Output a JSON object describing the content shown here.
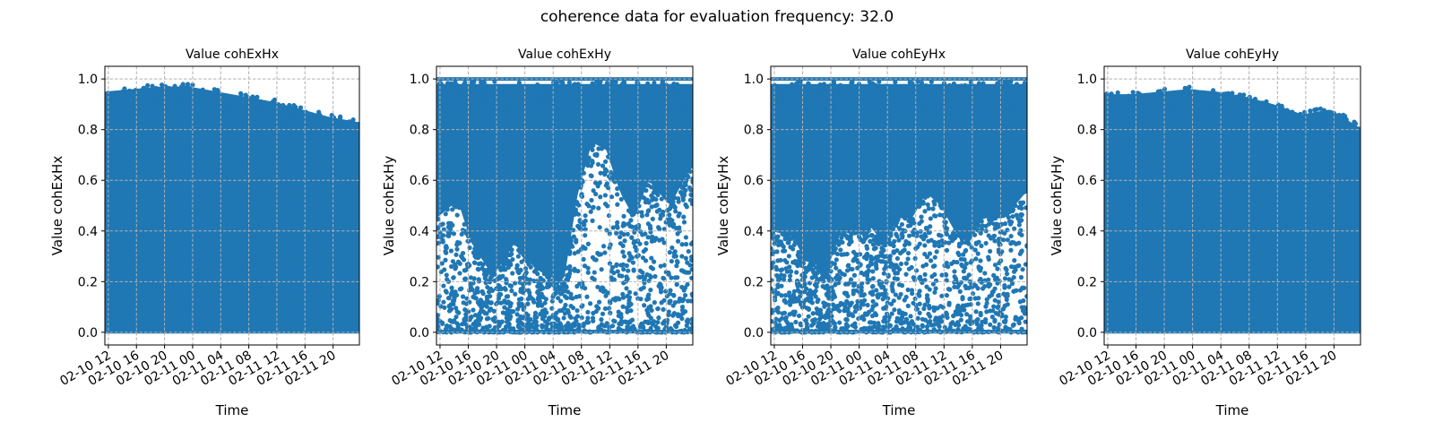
{
  "figure": {
    "suptitle": "coherence data for evaluation frequency: 32.0"
  },
  "style": {
    "point_color": "#1f77b4",
    "grid_color": "#b0b0b0",
    "axis_color": "#000000",
    "background": "#ffffff"
  },
  "chart_data": [
    {
      "type": "scatter",
      "title": "Value cohExHx",
      "xlabel": "Time",
      "ylabel": "Value cohExHx",
      "x_range": [
        "02-10 11:30",
        "02-11 23:45"
      ],
      "ylim": [
        -0.05,
        1.05
      ],
      "x_tick_labels": [
        "02-10 12",
        "02-10 16",
        "02-10 20",
        "02-11 00",
        "02-11 04",
        "02-11 08",
        "02-11 12",
        "02-11 16",
        "02-11 20"
      ],
      "y_tick_labels": [
        "0.0",
        "0.2",
        "0.4",
        "0.6",
        "0.8",
        "1.0"
      ],
      "grid": true,
      "series": [
        {
          "points_description": "dense band filling 0.0 to upper envelope",
          "upper_envelope": [
            [
              0,
              0.97
            ],
            [
              4,
              0.98
            ],
            [
              8,
              0.99
            ],
            [
              12,
              0.99
            ],
            [
              16,
              0.97
            ],
            [
              20,
              0.95
            ],
            [
              24,
              0.93
            ],
            [
              28,
              0.9
            ],
            [
              32,
              0.87
            ],
            [
              36,
              0.85
            ]
          ],
          "sparse_region": []
        }
      ]
    },
    {
      "type": "scatter",
      "title": "Value cohExHy",
      "xlabel": "Time",
      "ylabel": "Value cohExHy",
      "x_range": [
        "02-10 11:30",
        "02-11 23:45"
      ],
      "ylim": [
        -0.05,
        1.05
      ],
      "x_tick_labels": [
        "02-10 12",
        "02-10 16",
        "02-10 20",
        "02-11 00",
        "02-11 04",
        "02-11 08",
        "02-11 12",
        "02-11 16",
        "02-11 20"
      ],
      "y_tick_labels": [
        "0.0",
        "0.2",
        "0.4",
        "0.6",
        "0.8",
        "1.0"
      ],
      "grid": true,
      "series": [
        {
          "upper_envelope": [
            [
              0,
              1.0
            ],
            [
              36,
              1.0
            ]
          ],
          "dense_floor": [
            [
              0,
              0.45
            ],
            [
              3,
              0.52
            ],
            [
              5,
              0.35
            ],
            [
              8,
              0.22
            ],
            [
              11,
              0.35
            ],
            [
              14,
              0.25
            ],
            [
              16,
              0.22
            ],
            [
              18,
              0.2
            ],
            [
              20,
              0.55
            ],
            [
              22,
              0.75
            ],
            [
              24,
              0.72
            ],
            [
              26,
              0.55
            ],
            [
              28,
              0.45
            ],
            [
              30,
              0.6
            ],
            [
              33,
              0.5
            ],
            [
              36,
              0.65
            ]
          ]
        }
      ]
    },
    {
      "type": "scatter",
      "title": "Value cohEyHx",
      "xlabel": "Time",
      "ylabel": "Value cohEyHx",
      "x_range": [
        "02-10 11:30",
        "02-11 23:45"
      ],
      "ylim": [
        -0.05,
        1.05
      ],
      "x_tick_labels": [
        "02-10 12",
        "02-10 16",
        "02-10 20",
        "02-11 00",
        "02-11 04",
        "02-11 08",
        "02-11 12",
        "02-11 16",
        "02-11 20"
      ],
      "y_tick_labels": [
        "0.0",
        "0.2",
        "0.4",
        "0.6",
        "0.8",
        "1.0"
      ],
      "grid": true,
      "series": [
        {
          "upper_envelope": [
            [
              0,
              1.0
            ],
            [
              36,
              1.0
            ]
          ],
          "dense_floor": [
            [
              0,
              0.4
            ],
            [
              3,
              0.38
            ],
            [
              5,
              0.28
            ],
            [
              8,
              0.25
            ],
            [
              10,
              0.4
            ],
            [
              12,
              0.38
            ],
            [
              14,
              0.42
            ],
            [
              16,
              0.35
            ],
            [
              18,
              0.45
            ],
            [
              20,
              0.45
            ],
            [
              22,
              0.55
            ],
            [
              24,
              0.5
            ],
            [
              26,
              0.4
            ],
            [
              28,
              0.35
            ],
            [
              30,
              0.45
            ],
            [
              33,
              0.45
            ],
            [
              36,
              0.55
            ]
          ]
        }
      ]
    },
    {
      "type": "scatter",
      "title": "Value cohEyHy",
      "xlabel": "Time",
      "ylabel": "Value cohEyHy",
      "x_range": [
        "02-10 11:30",
        "02-11 23:45"
      ],
      "ylim": [
        -0.05,
        1.05
      ],
      "x_tick_labels": [
        "02-10 12",
        "02-10 16",
        "02-10 20",
        "02-11 00",
        "02-11 04",
        "02-11 08",
        "02-11 12",
        "02-11 16",
        "02-11 20"
      ],
      "y_tick_labels": [
        "0.0",
        "0.2",
        "0.4",
        "0.6",
        "0.8",
        "1.0"
      ],
      "grid": true,
      "series": [
        {
          "upper_envelope": [
            [
              0,
              0.96
            ],
            [
              4,
              0.96
            ],
            [
              8,
              0.97
            ],
            [
              12,
              0.98
            ],
            [
              16,
              0.97
            ],
            [
              20,
              0.95
            ],
            [
              24,
              0.92
            ],
            [
              28,
              0.88
            ],
            [
              32,
              0.9
            ],
            [
              36,
              0.83
            ]
          ],
          "sparse_region": []
        }
      ]
    }
  ]
}
